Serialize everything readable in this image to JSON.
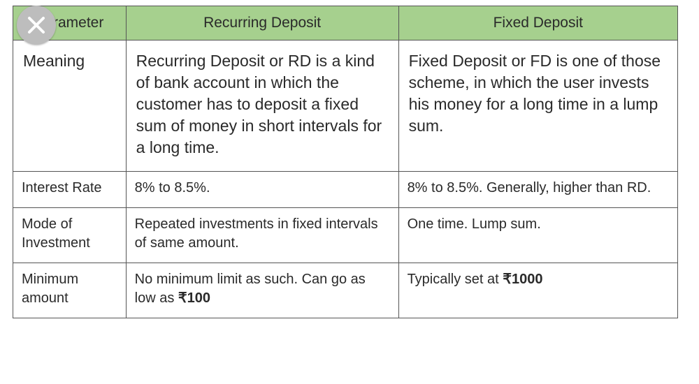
{
  "table": {
    "header_bg": "#a6d08e",
    "header_fontsize": 21,
    "body_fontsize_large": 23,
    "body_fontsize_small": 20,
    "cell_pad_large": "14px 14px 18px 14px",
    "cell_pad_small": "10px 12px 14px 12px",
    "border_color": "#555555",
    "text_color": "#2a2a2a",
    "columns": [
      "Parameter",
      "Recurring Deposit",
      "Fixed Deposit"
    ],
    "rows": [
      {
        "size": "large",
        "param": "Meaning",
        "rd": "Recurring Deposit or RD is a kind of bank account in which the customer has to deposit a fixed sum of money in short intervals for a long time.",
        "fd": "Fixed Deposit or FD is one of those scheme, in which the user invests his money for a long time in a lump sum."
      },
      {
        "size": "small",
        "param": "Interest Rate",
        "rd": "8% to 8.5%.",
        "fd": "8% to 8.5%. Generally, higher than RD."
      },
      {
        "size": "small",
        "param": "Mode of Investment",
        "rd": "Repeated investments in fixed intervals of same amount.",
        "fd": "One time. Lump sum."
      },
      {
        "size": "small",
        "param": "Minimum amount",
        "rd": "No minimum limit as such. Can go as low as ₹100",
        "fd": "Typically set at ₹1000",
        "rd_bold_tail": "₹100",
        "fd_bold_tail": "₹1000"
      }
    ]
  },
  "close_icon": {
    "bg": "#bdbdbd",
    "fg": "#ffffff"
  }
}
